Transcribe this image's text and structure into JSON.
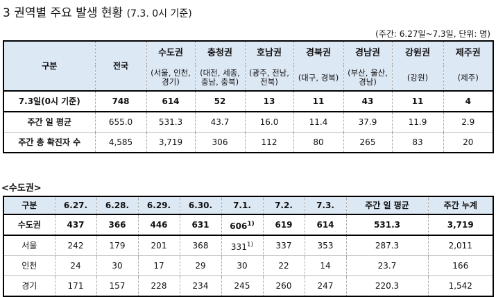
{
  "title": {
    "main": "3 권역별 주요 발생 현황",
    "sub": "(7.3. 0시 기준)"
  },
  "unit_note": "(주간: 6.27일~7.3일, 단위: 명)",
  "regional_table": {
    "corner": "구분",
    "national": "전국",
    "regions": [
      {
        "name": "수도권",
        "sub1": "(서울, 인천,",
        "sub2": "경기)"
      },
      {
        "name": "충청권",
        "sub1": "(대전, 세종,",
        "sub2": "충남, 충북)"
      },
      {
        "name": "호남권",
        "sub1": "(광주, 전남,",
        "sub2": "전북)"
      },
      {
        "name": "경북권",
        "sub1": "(대구, 경북)",
        "sub2": ""
      },
      {
        "name": "경남권",
        "sub1": "(부산, 울산,",
        "sub2": "경남)"
      },
      {
        "name": "강원권",
        "sub1": "(강원)",
        "sub2": ""
      },
      {
        "name": "제주권",
        "sub1": "(제주)",
        "sub2": ""
      }
    ],
    "rows": [
      {
        "label": "7.3일(0시 기준)",
        "values": [
          "748",
          "614",
          "52",
          "13",
          "11",
          "43",
          "11",
          "4"
        ]
      },
      {
        "label": "주간 일 평균",
        "values": [
          "655.0",
          "531.3",
          "43.7",
          "16.0",
          "11.4",
          "37.9",
          "11.9",
          "2.9"
        ]
      },
      {
        "label": "주간 총 확진자 수",
        "values": [
          "4,585",
          "3,719",
          "306",
          "112",
          "80",
          "265",
          "83",
          "20"
        ]
      }
    ]
  },
  "capital_section": {
    "label": "<수도권>",
    "headers": [
      "구분",
      "6.27.",
      "6.28.",
      "6.29.",
      "6.30.",
      "7.1.",
      "7.2.",
      "7.3.",
      "주간 일 평균",
      "주간 누계"
    ],
    "rows": [
      {
        "label": "수도권",
        "values": [
          "437",
          "366",
          "446",
          "631",
          "606",
          "619",
          "614",
          "531.3",
          "3,719"
        ],
        "note": "1)"
      },
      {
        "label": "서울",
        "values": [
          "242",
          "179",
          "201",
          "368",
          "331",
          "337",
          "353",
          "287.3",
          "2,011"
        ],
        "note": "1)"
      },
      {
        "label": "인천",
        "values": [
          "24",
          "30",
          "17",
          "29",
          "30",
          "22",
          "14",
          "23.7",
          "166"
        ]
      },
      {
        "label": "경기",
        "values": [
          "171",
          "157",
          "228",
          "234",
          "245",
          "260",
          "247",
          "220.3",
          "1,542"
        ]
      }
    ]
  }
}
